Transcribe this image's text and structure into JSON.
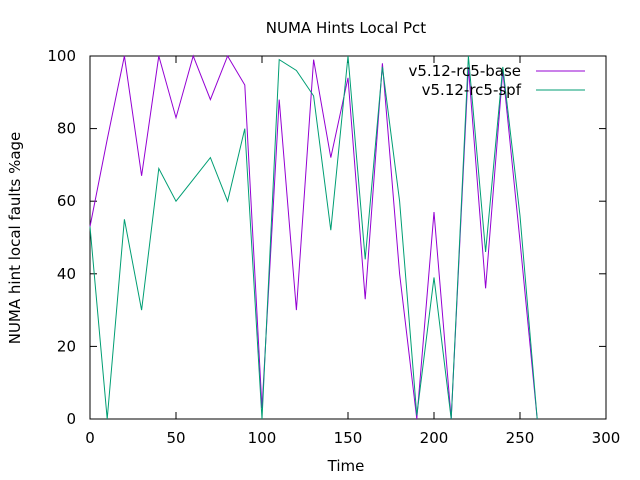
{
  "chart_data": {
    "type": "line",
    "title": "NUMA Hints Local Pct",
    "xlabel": "Time",
    "ylabel": "NUMA hint local faults %age",
    "xlim": [
      0,
      300
    ],
    "ylim": [
      0,
      100
    ],
    "xticks": [
      0,
      50,
      100,
      150,
      200,
      250,
      300
    ],
    "yticks": [
      0,
      20,
      40,
      60,
      80,
      100
    ],
    "grid": false,
    "legend_position": "top-right",
    "series": [
      {
        "name": "v5.12-rc5-base",
        "color": "#9400d3",
        "x": [
          0,
          10,
          20,
          30,
          40,
          50,
          60,
          70,
          80,
          90,
          100,
          110,
          120,
          130,
          140,
          150,
          160,
          170,
          180,
          190,
          200,
          210,
          220,
          230,
          240,
          250,
          260
        ],
        "y": [
          53,
          77,
          100,
          67,
          100,
          83,
          100,
          88,
          100,
          92,
          3,
          88,
          30,
          99,
          72,
          94,
          33,
          98,
          40,
          0,
          57,
          0,
          97,
          36,
          96,
          49,
          0
        ]
      },
      {
        "name": "v5.12-rc5-spf",
        "color": "#009e73",
        "x": [
          0,
          10,
          20,
          30,
          40,
          50,
          60,
          70,
          80,
          90,
          100,
          110,
          120,
          130,
          140,
          150,
          160,
          170,
          180,
          190,
          200,
          210,
          220,
          230,
          240,
          250,
          260
        ],
        "y": [
          53,
          0,
          55,
          30,
          69,
          60,
          66,
          72,
          60,
          80,
          0,
          99,
          96,
          89,
          52,
          100,
          44,
          97,
          60,
          1,
          39,
          0,
          100,
          46,
          97,
          56,
          0
        ]
      }
    ]
  }
}
